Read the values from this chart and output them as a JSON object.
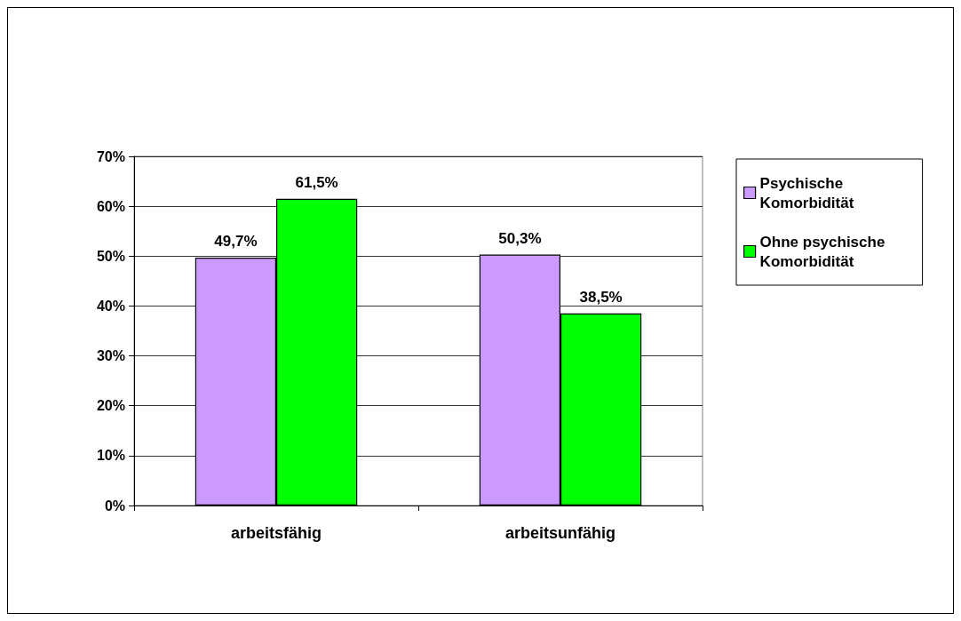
{
  "chart_data": {
    "type": "bar",
    "categories": [
      "arbeitsfähig",
      "arbeitsunfähig"
    ],
    "series": [
      {
        "name": "Psychische Komorbidität",
        "color": "#cc99ff",
        "values": [
          49.7,
          50.3
        ],
        "value_labels": [
          "49,7%",
          "50,3%"
        ]
      },
      {
        "name": "Ohne psychische Komorbidität",
        "color": "#00ff00",
        "values": [
          61.5,
          38.5
        ],
        "value_labels": [
          "61,5%",
          "38,5%"
        ]
      }
    ],
    "ylim": [
      0,
      70
    ],
    "yticks": [
      {
        "value": 0,
        "label": "0%"
      },
      {
        "value": 10,
        "label": "10%"
      },
      {
        "value": 20,
        "label": "20%"
      },
      {
        "value": 30,
        "label": "30%"
      },
      {
        "value": 40,
        "label": "40%"
      },
      {
        "value": 50,
        "label": "50%"
      },
      {
        "value": 60,
        "label": "60%"
      },
      {
        "value": 70,
        "label": "70%"
      }
    ],
    "grid": "y",
    "legend": "right"
  }
}
